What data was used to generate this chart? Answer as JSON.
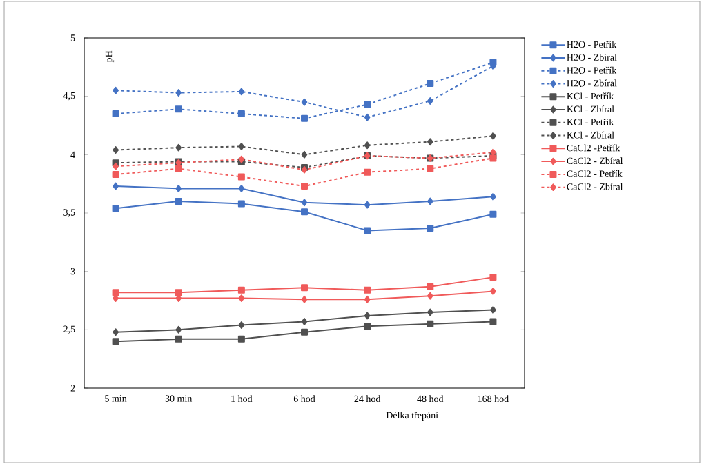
{
  "chart_data": {
    "type": "line",
    "xlabel": "Délka třepání",
    "ylabel": "pH",
    "categories": [
      "5 min",
      "30 min",
      "1 hod",
      "6 hod",
      "24 hod",
      "48 hod",
      "168 hod"
    ],
    "ylim": [
      2,
      5
    ],
    "yticks": [
      2,
      {
        "value": 2.5,
        "label": "2,5"
      },
      3,
      {
        "value": 3.5,
        "label": "3,5"
      },
      4,
      {
        "value": 4.5,
        "label": "4,5"
      },
      5
    ],
    "grid": false,
    "legend": "right",
    "series": [
      {
        "name": "H2O - Petřík",
        "color": "#4472c4",
        "marker": "square",
        "line_style": "solid",
        "values": [
          3.54,
          3.6,
          3.58,
          3.51,
          3.35,
          3.37,
          3.49
        ]
      },
      {
        "name": "H2O - Zbíral",
        "color": "#4472c4",
        "marker": "diamond",
        "line_style": "solid",
        "values": [
          3.73,
          3.71,
          3.71,
          3.59,
          3.57,
          3.6,
          3.64
        ]
      },
      {
        "name": "H2O - Petřík",
        "color": "#4472c4",
        "marker": "square",
        "line_style": "dashed",
        "values": [
          4.35,
          4.39,
          4.35,
          4.31,
          4.43,
          4.61,
          4.79
        ]
      },
      {
        "name": "H2O - Zbíral",
        "color": "#4472c4",
        "marker": "diamond",
        "line_style": "dashed",
        "values": [
          4.55,
          4.53,
          4.54,
          4.45,
          4.32,
          4.46,
          4.76
        ]
      },
      {
        "name": "KCl - Petřík",
        "color": "#505050",
        "marker": "square",
        "line_style": "solid",
        "values": [
          2.4,
          2.42,
          2.42,
          2.48,
          2.53,
          2.55,
          2.57
        ]
      },
      {
        "name": "KCl - Zbíral",
        "color": "#505050",
        "marker": "diamond",
        "line_style": "solid",
        "values": [
          2.48,
          2.5,
          2.54,
          2.57,
          2.62,
          2.65,
          2.67
        ]
      },
      {
        "name": "KCl - Petřík",
        "color": "#505050",
        "marker": "square",
        "line_style": "dashed",
        "values": [
          3.93,
          3.94,
          3.94,
          3.89,
          3.99,
          3.97,
          3.99
        ]
      },
      {
        "name": "KCl - Zbíral",
        "color": "#505050",
        "marker": "diamond",
        "line_style": "dashed",
        "values": [
          4.04,
          4.06,
          4.07,
          4.0,
          4.08,
          4.11,
          4.16
        ]
      },
      {
        "name": "CaCl2 -Petřík",
        "color": "#f05a5a",
        "marker": "square",
        "line_style": "solid",
        "values": [
          2.82,
          2.82,
          2.84,
          2.86,
          2.84,
          2.87,
          2.95
        ]
      },
      {
        "name": "CaCl2 - Zbíral",
        "color": "#f05a5a",
        "marker": "diamond",
        "line_style": "solid",
        "values": [
          2.77,
          2.77,
          2.77,
          2.76,
          2.76,
          2.79,
          2.83
        ]
      },
      {
        "name": "CaCl2 - Petřík",
        "color": "#f05a5a",
        "marker": "square",
        "line_style": "dashed",
        "values": [
          3.83,
          3.88,
          3.81,
          3.73,
          3.85,
          3.88,
          3.97
        ]
      },
      {
        "name": "CaCl2 - Zbíral",
        "color": "#f05a5a",
        "marker": "diamond",
        "line_style": "dashed",
        "values": [
          3.9,
          3.93,
          3.96,
          3.87,
          3.99,
          3.97,
          4.02
        ]
      }
    ]
  }
}
